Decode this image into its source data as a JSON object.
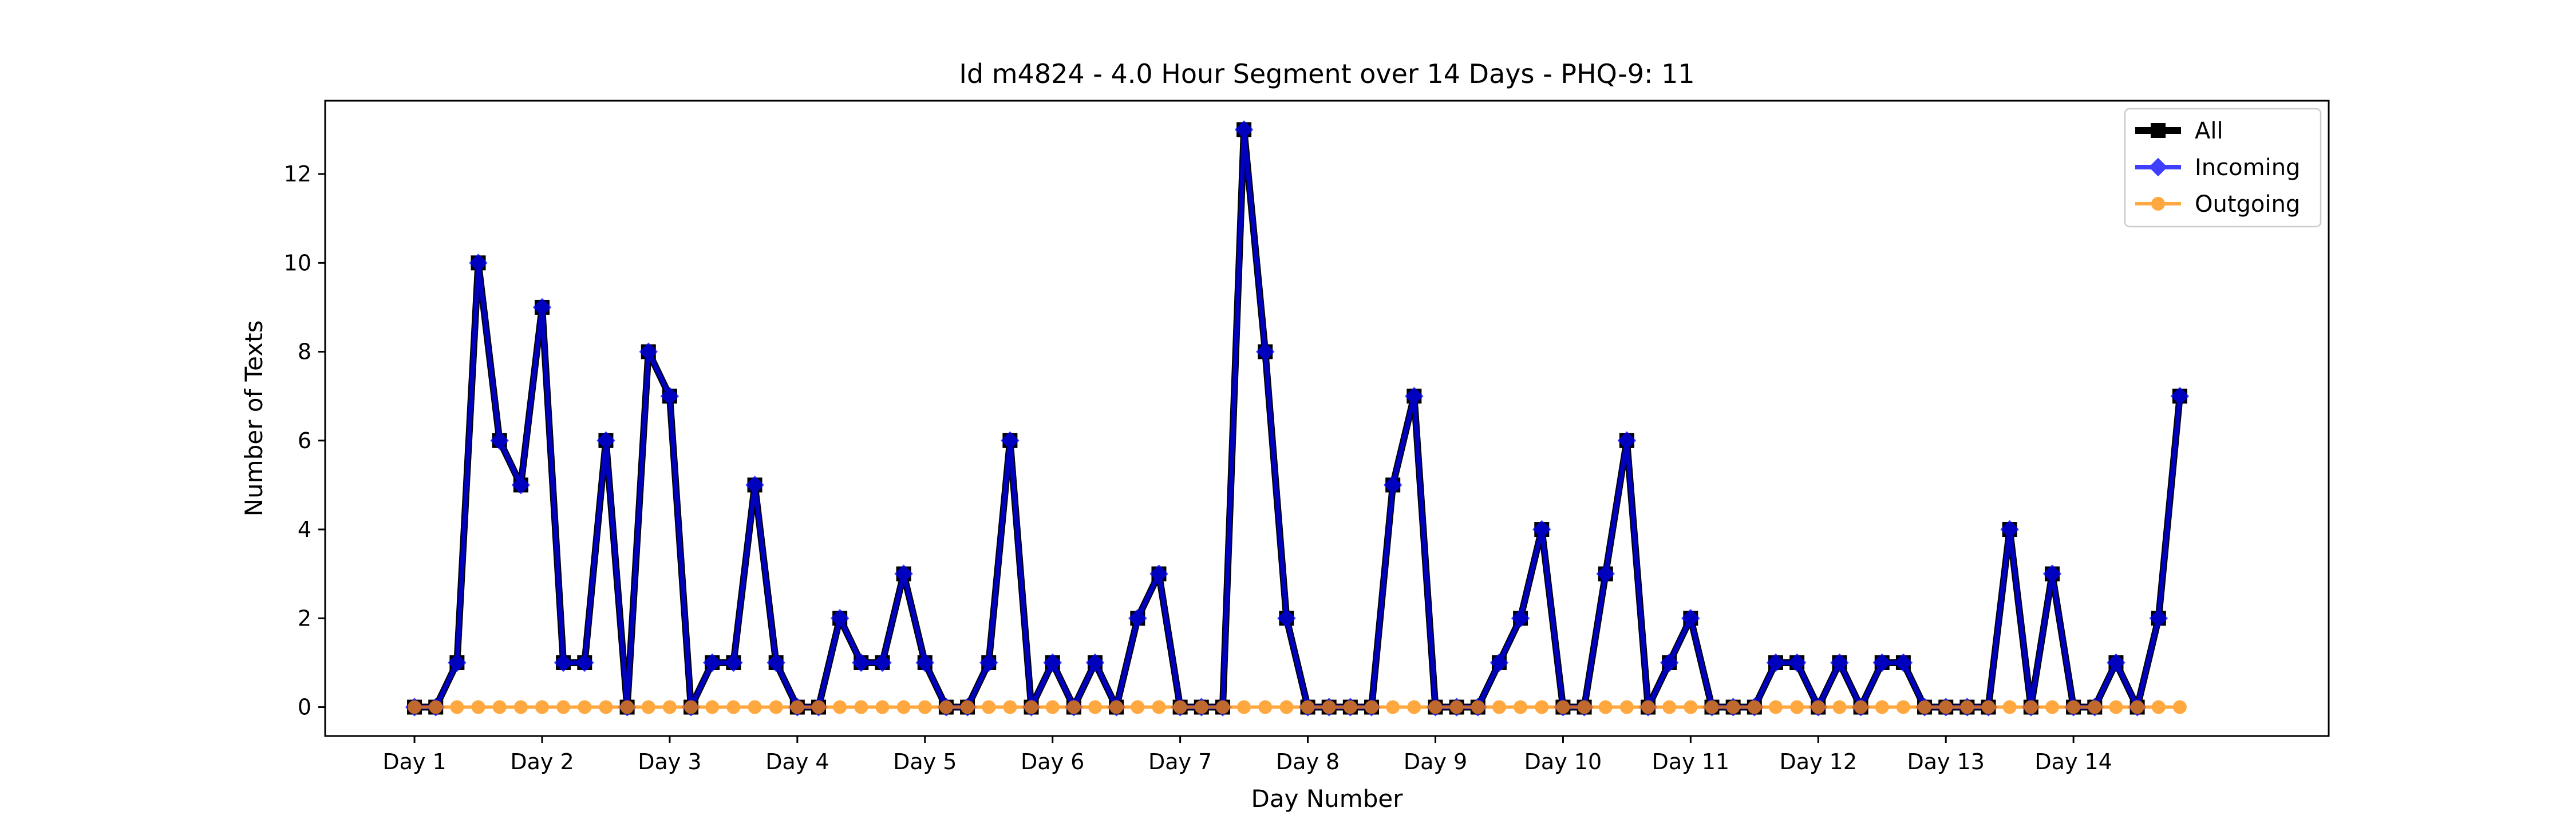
{
  "chart_data": {
    "type": "line",
    "title": "Id m4824 - 4.0 Hour Segment over 14 Days - PHQ-9: 11",
    "xlabel": "Day Number",
    "ylabel": "Number of Texts",
    "xlim": [
      -0.7,
      15.0
    ],
    "ylim": [
      -0.65,
      13.65
    ],
    "x_ticks": [
      0,
      1,
      2,
      3,
      4,
      5,
      6,
      7,
      8,
      9,
      10,
      11,
      12,
      13
    ],
    "x_tick_labels": [
      "Day 1",
      "Day 2",
      "Day 3",
      "Day 4",
      "Day 5",
      "Day 6",
      "Day 7",
      "Day 8",
      "Day 9",
      "Day 10",
      "Day 11",
      "Day 12",
      "Day 13",
      "Day 14"
    ],
    "y_ticks": [
      0,
      2,
      4,
      6,
      8,
      10,
      12
    ],
    "y_tick_labels": [
      "0",
      "2",
      "4",
      "6",
      "8",
      "10",
      "12"
    ],
    "grid": false,
    "legend_position": "top-right",
    "series": [
      {
        "name": "All",
        "color": "#000000",
        "marker": "square",
        "values": [
          0,
          0,
          1,
          10,
          6,
          5,
          9,
          1,
          1,
          6,
          0,
          8,
          7,
          0,
          1,
          1,
          5,
          1,
          0,
          0,
          2,
          1,
          1,
          3,
          1,
          0,
          0,
          1,
          6,
          0,
          1,
          0,
          1,
          0,
          2,
          3,
          0,
          0,
          0,
          13,
          8,
          2,
          0,
          0,
          0,
          0,
          5,
          7,
          0,
          0,
          0,
          1,
          2,
          4,
          0,
          0,
          3,
          6,
          0,
          1,
          2,
          0,
          0,
          0,
          1,
          1,
          0,
          1,
          0,
          1,
          1,
          0,
          0,
          0,
          0,
          4,
          0,
          3,
          0,
          0,
          1,
          0,
          2,
          7
        ]
      },
      {
        "name": "Incoming",
        "color": "#0000ff",
        "marker": "diamond",
        "values": [
          0,
          0,
          1,
          10,
          6,
          5,
          9,
          1,
          1,
          6,
          0,
          8,
          7,
          0,
          1,
          1,
          5,
          1,
          0,
          0,
          2,
          1,
          1,
          3,
          1,
          0,
          0,
          1,
          6,
          0,
          1,
          0,
          1,
          0,
          2,
          3,
          0,
          0,
          0,
          13,
          8,
          2,
          0,
          0,
          0,
          0,
          5,
          7,
          0,
          0,
          0,
          1,
          2,
          4,
          0,
          0,
          3,
          6,
          0,
          1,
          2,
          0,
          0,
          0,
          1,
          1,
          0,
          1,
          0,
          1,
          1,
          0,
          0,
          0,
          0,
          4,
          0,
          3,
          0,
          0,
          1,
          0,
          2,
          7
        ]
      },
      {
        "name": "Outgoing",
        "color": "#ff8c00",
        "marker": "circle",
        "values": [
          0,
          0,
          0,
          0,
          0,
          0,
          0,
          0,
          0,
          0,
          0,
          0,
          0,
          0,
          0,
          0,
          0,
          0,
          0,
          0,
          0,
          0,
          0,
          0,
          0,
          0,
          0,
          0,
          0,
          0,
          0,
          0,
          0,
          0,
          0,
          0,
          0,
          0,
          0,
          0,
          0,
          0,
          0,
          0,
          0,
          0,
          0,
          0,
          0,
          0,
          0,
          0,
          0,
          0,
          0,
          0,
          0,
          0,
          0,
          0,
          0,
          0,
          0,
          0,
          0,
          0,
          0,
          0,
          0,
          0,
          0,
          0,
          0,
          0,
          0,
          0,
          0,
          0,
          0,
          0,
          0,
          0,
          0,
          0
        ]
      }
    ]
  }
}
